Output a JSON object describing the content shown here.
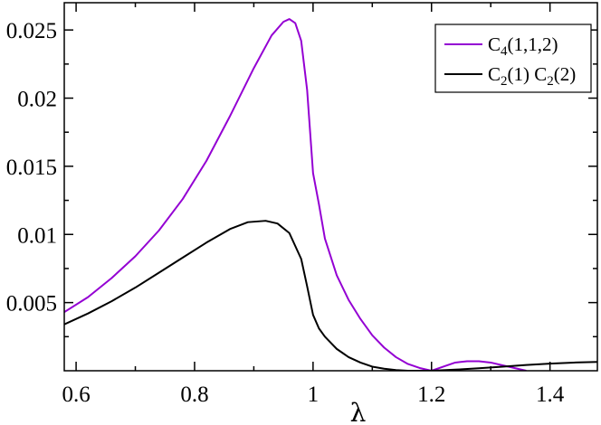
{
  "chart_data": {
    "type": "line",
    "title": "",
    "xlabel": "λ",
    "ylabel": "",
    "xlim": [
      0.58,
      1.48
    ],
    "ylim": [
      0,
      0.027
    ],
    "grid": false,
    "legend_position": "top-right",
    "x_ticks": [
      0.6,
      0.8,
      1.0,
      1.2,
      1.4
    ],
    "x_tick_labels": [
      "0.6",
      "0.8",
      "1",
      "1.2",
      "1.4"
    ],
    "y_ticks": [
      0.005,
      0.01,
      0.015,
      0.02,
      0.025
    ],
    "y_tick_labels": [
      "0.005",
      "0.01",
      "0.015",
      "0.02",
      "0.025"
    ],
    "series": [
      {
        "name": "C4(1,1,2)",
        "legend": {
          "base": "C",
          "sub": "4",
          "rest": "(1,1,2)"
        },
        "color": "#9400D3",
        "x": [
          0.58,
          0.62,
          0.66,
          0.7,
          0.74,
          0.78,
          0.82,
          0.86,
          0.9,
          0.93,
          0.95,
          0.96,
          0.97,
          0.98,
          0.99,
          1.0,
          1.01,
          1.02,
          1.04,
          1.06,
          1.08,
          1.1,
          1.12,
          1.14,
          1.16,
          1.18,
          1.2,
          1.22,
          1.24,
          1.26,
          1.28,
          1.3,
          1.32,
          1.34,
          1.36
        ],
        "y": [
          0.0043,
          0.0054,
          0.0068,
          0.0084,
          0.0103,
          0.0126,
          0.0154,
          0.0187,
          0.0222,
          0.0246,
          0.0256,
          0.0258,
          0.0255,
          0.0242,
          0.0206,
          0.0145,
          0.0122,
          0.0097,
          0.007,
          0.0052,
          0.0038,
          0.0026,
          0.0017,
          0.001,
          0.0005,
          0.0002,
          0.0,
          0.0003,
          0.0006,
          0.0007,
          0.0007,
          0.0006,
          0.0004,
          0.0002,
          0.0
        ]
      },
      {
        "name": "C2(1) C2(2)",
        "legend": {
          "base": "C",
          "sub": "2",
          "rest": "(1) C",
          "sub2": "2",
          "rest2": "(2)"
        },
        "color": "#000000",
        "x": [
          0.58,
          0.62,
          0.66,
          0.7,
          0.74,
          0.78,
          0.82,
          0.86,
          0.89,
          0.92,
          0.94,
          0.96,
          0.98,
          0.99,
          1.0,
          1.01,
          1.02,
          1.04,
          1.06,
          1.08,
          1.1,
          1.12,
          1.14,
          1.16,
          1.18,
          1.2,
          1.24,
          1.28,
          1.32,
          1.36,
          1.4,
          1.44,
          1.48
        ],
        "y": [
          0.0034,
          0.0042,
          0.0051,
          0.0061,
          0.0072,
          0.0083,
          0.0094,
          0.0104,
          0.0109,
          0.011,
          0.0108,
          0.0101,
          0.0082,
          0.0062,
          0.0041,
          0.0031,
          0.0025,
          0.0016,
          0.001,
          0.0006,
          0.0003,
          0.00015,
          5e-05,
          0.0,
          0.0,
          0.0,
          8e-05,
          0.00018,
          0.0003,
          0.00042,
          0.00052,
          0.0006,
          0.00065
        ]
      }
    ]
  }
}
